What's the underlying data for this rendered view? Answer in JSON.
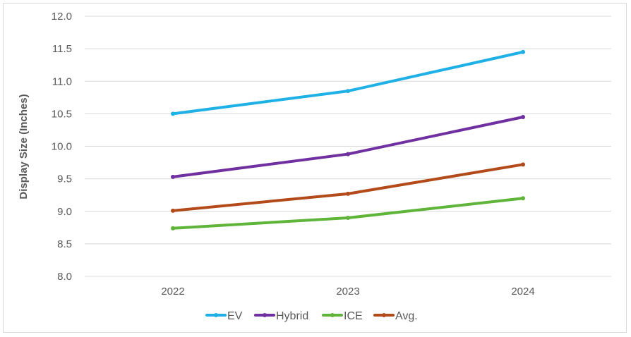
{
  "chart_data": {
    "type": "line",
    "title": "",
    "xlabel": "",
    "ylabel": "Display Size (Inches)",
    "categories": [
      "2022",
      "2023",
      "2024"
    ],
    "ylim": [
      8.0,
      12.0
    ],
    "yticks": [
      "8.0",
      "8.5",
      "9.0",
      "9.5",
      "10.0",
      "10.5",
      "11.0",
      "11.5",
      "12.0"
    ],
    "grid": true,
    "legend_position": "bottom",
    "series": [
      {
        "name": "EV",
        "values": [
          10.5,
          10.85,
          11.45
        ],
        "color": "#1fb1e6"
      },
      {
        "name": "Hybrid",
        "values": [
          9.53,
          9.88,
          10.45
        ],
        "color": "#7030a0"
      },
      {
        "name": "ICE",
        "values": [
          8.74,
          8.9,
          9.2
        ],
        "color": "#5fb43a"
      },
      {
        "name": "Avg.",
        "values": [
          9.01,
          9.27,
          9.72
        ],
        "color": "#b34a1a"
      }
    ]
  }
}
